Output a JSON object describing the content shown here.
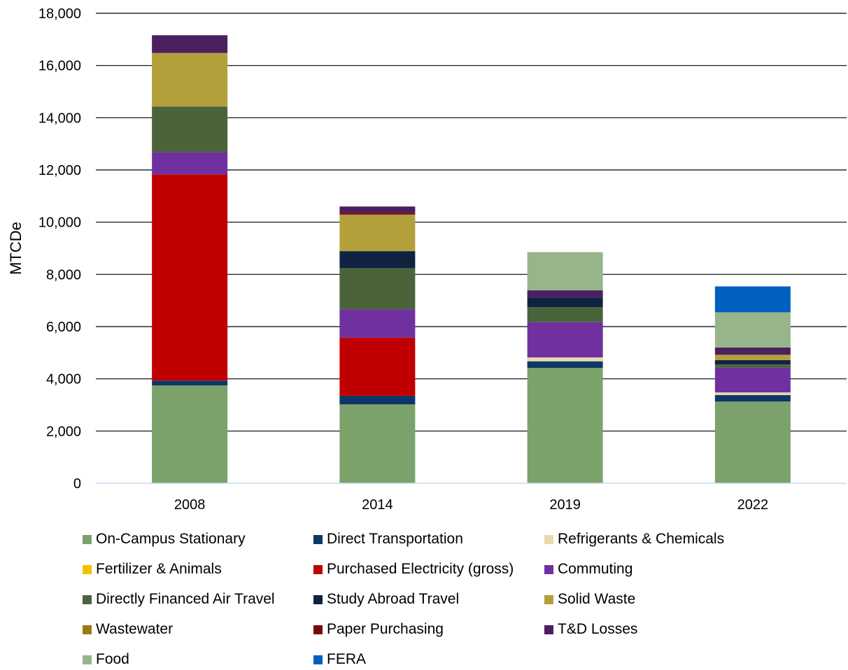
{
  "chart_data": {
    "type": "bar",
    "stacked": true,
    "categories": [
      "2008",
      "2014",
      "2019",
      "2022"
    ],
    "ylabel": "MTCDe",
    "xlabel": "",
    "title": "",
    "ylim": [
      0,
      18000
    ],
    "yticks": [
      0,
      2000,
      4000,
      6000,
      8000,
      10000,
      12000,
      14000,
      16000,
      18000
    ],
    "ytick_labels": [
      "0",
      "2,000",
      "4,000",
      "6,000",
      "8,000",
      "10,000",
      "12,000",
      "14,000",
      "16,000",
      "18,000"
    ],
    "grid": true,
    "legend_position": "bottom",
    "series": [
      {
        "name": "On-Campus Stationary",
        "color": "#7BA26A",
        "values": [
          3750,
          3020,
          4420,
          3130
        ]
      },
      {
        "name": "Direct Transportation",
        "color": "#0D3768",
        "values": [
          180,
          330,
          250,
          250
        ]
      },
      {
        "name": "Refrigerants & Chemicals",
        "color": "#E6D9AD",
        "values": [
          0,
          0,
          150,
          100
        ]
      },
      {
        "name": "Fertilizer & Animals",
        "color": "#F5C000",
        "values": [
          0,
          0,
          0,
          0
        ]
      },
      {
        "name": "Purchased Electricity (gross)",
        "color": "#C00000",
        "values": [
          7900,
          2230,
          0,
          0
        ]
      },
      {
        "name": "Commuting",
        "color": "#7030A0",
        "values": [
          850,
          1080,
          1350,
          950
        ]
      },
      {
        "name": "Directly Financed Air Travel",
        "color": "#4A633B",
        "values": [
          1750,
          1580,
          580,
          120
        ]
      },
      {
        "name": "Study Abroad Travel",
        "color": "#0F2340",
        "values": [
          0,
          650,
          370,
          170
        ]
      },
      {
        "name": "Solid Waste",
        "color": "#B3A03A",
        "values": [
          2050,
          1400,
          0,
          200
        ]
      },
      {
        "name": "Wastewater",
        "color": "#9C7A14",
        "values": [
          0,
          0,
          0,
          0
        ]
      },
      {
        "name": "Paper Purchasing",
        "color": "#7A0A0A",
        "values": [
          0,
          60,
          0,
          0
        ]
      },
      {
        "name": "T&D Losses",
        "color": "#4B1F60",
        "values": [
          680,
          250,
          270,
          280
        ]
      },
      {
        "name": "Food",
        "color": "#98B48A",
        "values": [
          0,
          0,
          1460,
          1350
        ]
      },
      {
        "name": "FERA",
        "color": "#0060C0",
        "values": [
          0,
          0,
          0,
          990
        ]
      }
    ]
  }
}
